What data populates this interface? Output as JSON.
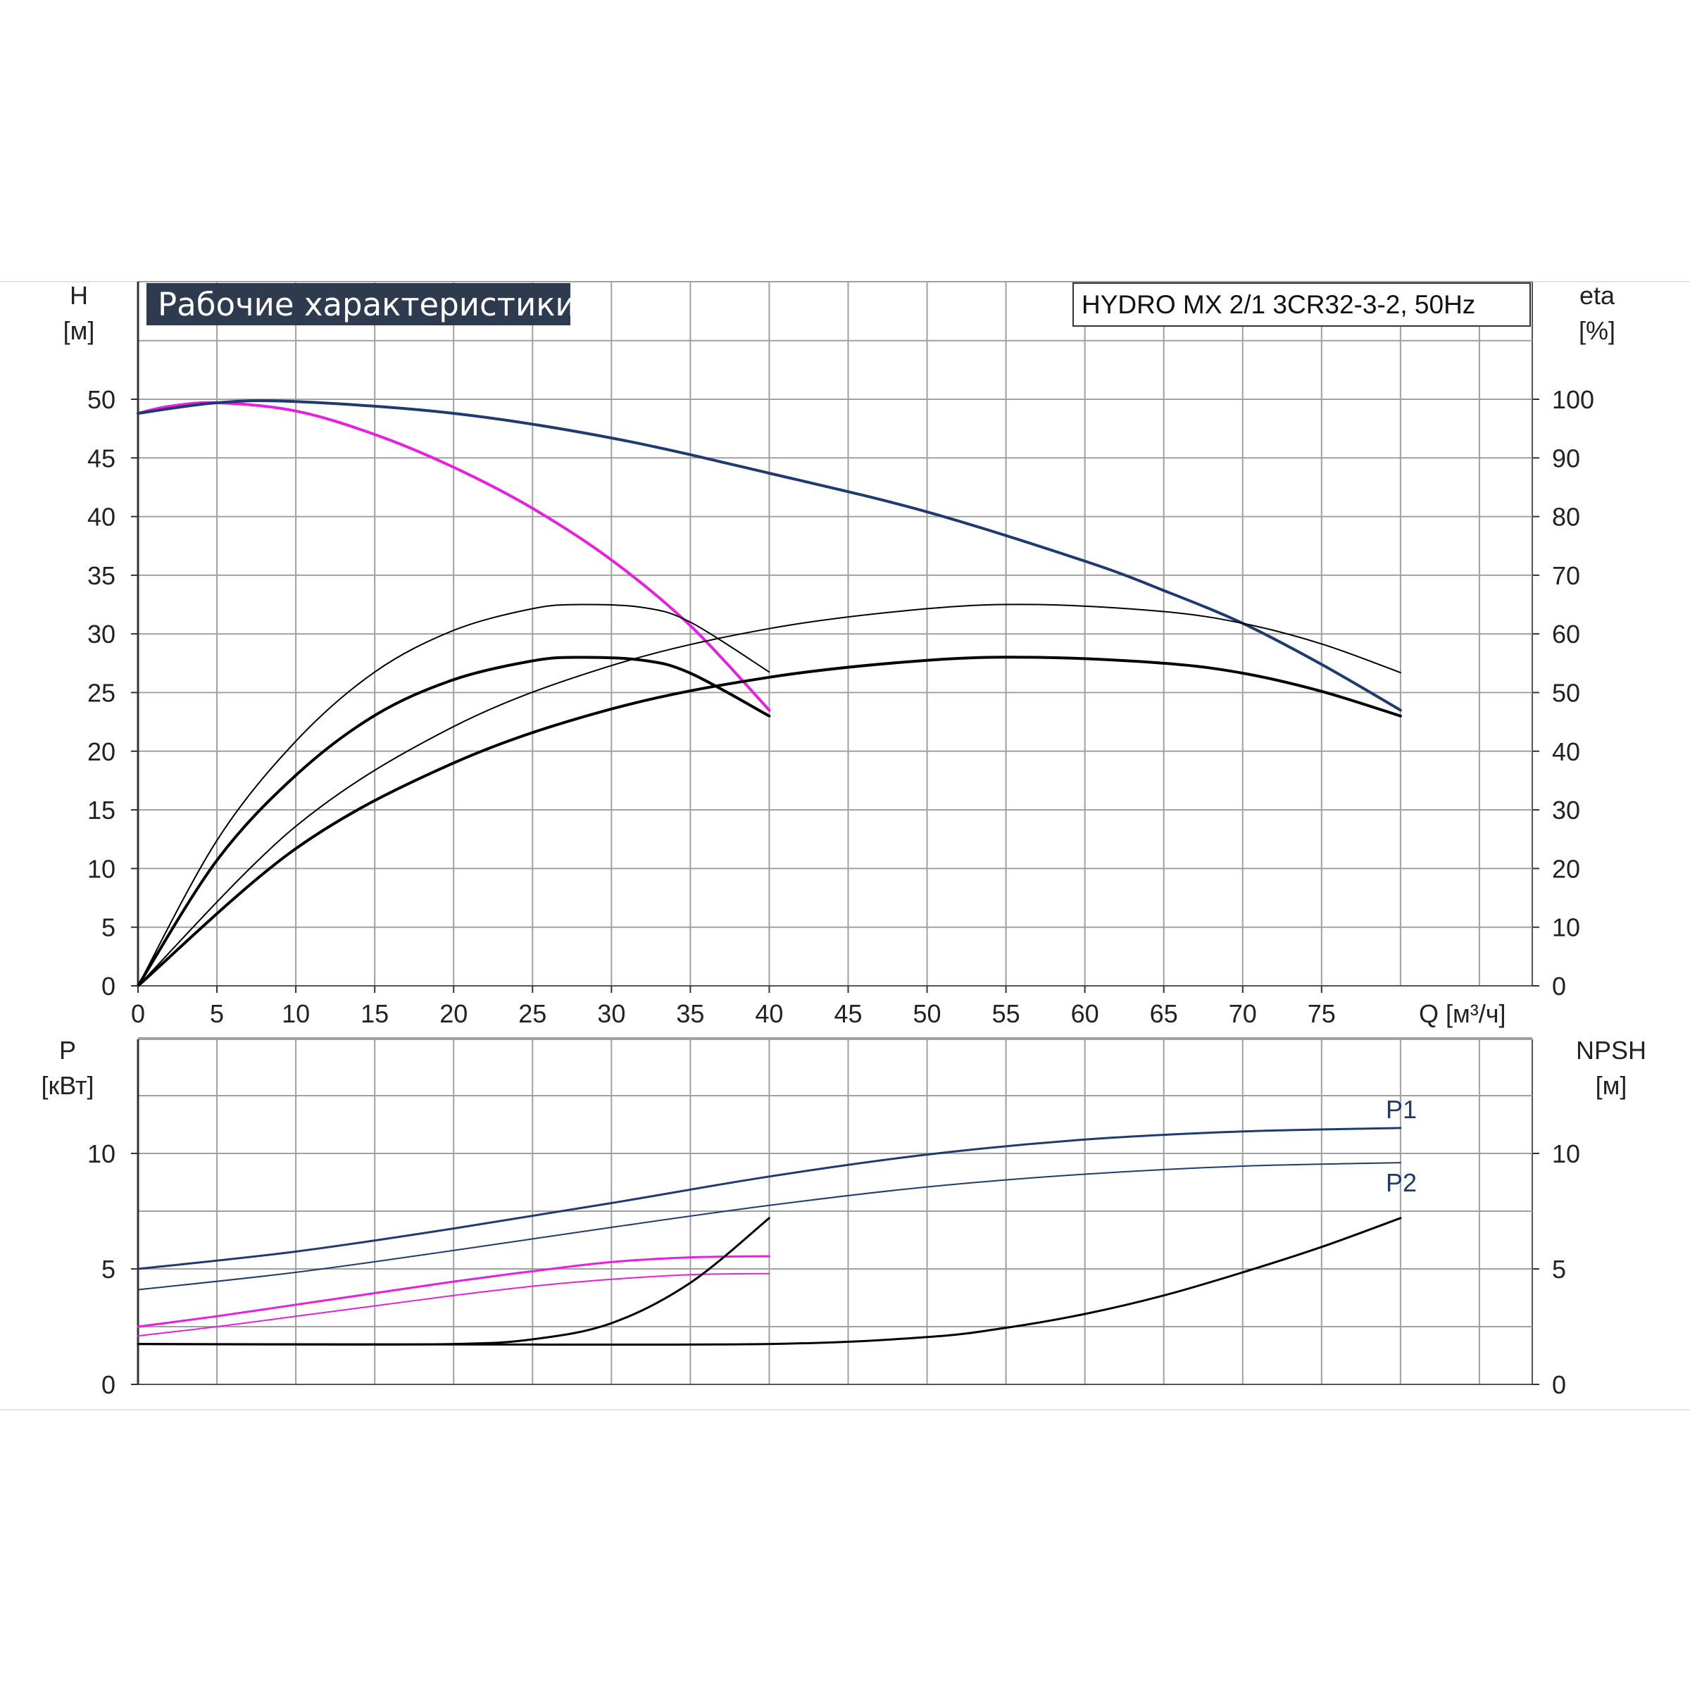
{
  "title": "Рабочие характеристики",
  "model": "HYDRO MX 2/1 3CR32-3-2, 50Hz",
  "colors": {
    "navy": "#1f3a6e",
    "magenta": "#e81ee0",
    "black": "#000000",
    "grid": "#a0a0a0",
    "title_bg": "#2e3a4e"
  },
  "chart_data": [
    {
      "type": "line",
      "name": "top",
      "y_label": {
        "name": "H",
        "unit": "[м]"
      },
      "y2_label": {
        "name": "eta",
        "unit": "[%]"
      },
      "x_label": "Q [м³/ч]",
      "xlim": [
        0,
        88
      ],
      "ylim": [
        0,
        50
      ],
      "y2lim": [
        0,
        100
      ],
      "x_ticks": [
        "0",
        "5",
        "10",
        "15",
        "20",
        "25",
        "30",
        "35",
        "40",
        "45",
        "50",
        "55",
        "60",
        "65",
        "70",
        "75"
      ],
      "y_ticks": [
        "0",
        "5",
        "10",
        "15",
        "20",
        "25",
        "30",
        "35",
        "40",
        "45",
        "50"
      ],
      "y2_ticks": [
        "0",
        "10",
        "20",
        "30",
        "40",
        "50",
        "60",
        "70",
        "80",
        "90",
        "100"
      ],
      "grid": true,
      "series": [
        {
          "role": "H_single",
          "color": "magenta",
          "width": 4,
          "x": [
            0,
            2,
            5,
            10,
            15,
            20,
            25,
            30,
            35,
            40
          ],
          "y": [
            48.8,
            49.4,
            49.7,
            49.0,
            47.0,
            44.2,
            40.7,
            36.3,
            30.7,
            23.5
          ]
        },
        {
          "role": "H_dual",
          "color": "navy",
          "width": 4,
          "x": [
            0,
            5,
            10,
            20,
            30,
            40,
            50,
            60,
            65,
            70,
            75,
            80
          ],
          "y": [
            48.8,
            49.7,
            49.8,
            48.8,
            46.7,
            43.7,
            40.4,
            36.2,
            33.7,
            30.9,
            27.4,
            23.5
          ]
        },
        {
          "role": "eta_single_a",
          "color": "black",
          "width": 2,
          "x": [
            0,
            5,
            10,
            15,
            20,
            25,
            28,
            32,
            35,
            40
          ],
          "y": [
            0,
            24.8,
            41.7,
            53.5,
            60.6,
            64.3,
            65.0,
            64.5,
            62.0,
            53.5
          ]
        },
        {
          "role": "eta_single_b",
          "color": "black",
          "width": 4,
          "x": [
            0,
            5,
            10,
            15,
            20,
            25,
            28,
            32,
            35,
            40
          ],
          "y": [
            0,
            21.4,
            35.9,
            46.1,
            52.2,
            55.4,
            56.0,
            55.5,
            53.3,
            46.0
          ]
        },
        {
          "role": "eta_dual_a",
          "color": "black",
          "width": 2,
          "x": [
            0,
            10,
            20,
            30,
            40,
            50,
            57,
            65,
            70,
            75,
            80
          ],
          "y": [
            0,
            27.2,
            44.2,
            54.6,
            60.9,
            64.3,
            65.0,
            63.8,
            61.8,
            58.3,
            53.4
          ]
        },
        {
          "role": "eta_dual_b",
          "color": "black",
          "width": 4,
          "x": [
            0,
            10,
            20,
            30,
            40,
            50,
            57,
            65,
            70,
            75,
            80
          ],
          "y": [
            0,
            23.4,
            38.0,
            47.2,
            52.6,
            55.5,
            56.0,
            55.0,
            53.3,
            50.2,
            46.0
          ]
        }
      ]
    },
    {
      "type": "line",
      "name": "bottom",
      "y_label": {
        "name": "P",
        "unit": "[кВт]"
      },
      "y2_label": {
        "name": "NPSH",
        "unit": "[м]"
      },
      "xlim": [
        0,
        88
      ],
      "ylim": [
        0,
        15
      ],
      "y2lim": [
        0,
        15
      ],
      "y_ticks": [
        "0",
        "5",
        "10"
      ],
      "y2_ticks": [
        "0",
        "5",
        "10"
      ],
      "grid": true,
      "series": [
        {
          "role": "P1_dual",
          "label": "P1",
          "color": "navy",
          "width": 3,
          "x": [
            0,
            10,
            20,
            30,
            40,
            50,
            60,
            70,
            80
          ],
          "y": [
            5.0,
            5.75,
            6.75,
            7.85,
            9.0,
            9.95,
            10.6,
            10.95,
            11.1
          ]
        },
        {
          "role": "P2_dual",
          "label": "P2",
          "color": "navy",
          "width": 2,
          "x": [
            0,
            10,
            20,
            30,
            40,
            50,
            60,
            70,
            80
          ],
          "y": [
            4.1,
            4.85,
            5.8,
            6.8,
            7.75,
            8.55,
            9.1,
            9.45,
            9.6
          ]
        },
        {
          "role": "P1_single",
          "color": "magenta",
          "width": 3,
          "x": [
            0,
            5,
            10,
            15,
            20,
            25,
            30,
            35,
            40
          ],
          "y": [
            2.5,
            2.95,
            3.45,
            3.95,
            4.45,
            4.9,
            5.3,
            5.5,
            5.55
          ]
        },
        {
          "role": "P2_single",
          "color": "magenta",
          "width": 2,
          "x": [
            0,
            5,
            10,
            15,
            20,
            25,
            30,
            35,
            40
          ],
          "y": [
            2.1,
            2.5,
            2.95,
            3.4,
            3.85,
            4.25,
            4.55,
            4.75,
            4.8
          ]
        },
        {
          "role": "NPSH_single",
          "color": "black",
          "width": 3,
          "x": [
            0,
            10,
            20,
            25,
            30,
            35,
            40
          ],
          "y": [
            1.75,
            1.73,
            1.75,
            1.95,
            2.65,
            4.4,
            7.2
          ]
        },
        {
          "role": "NPSH_dual",
          "color": "black",
          "width": 3,
          "x": [
            0,
            20,
            40,
            50,
            55,
            60,
            65,
            70,
            75,
            80
          ],
          "y": [
            1.75,
            1.73,
            1.75,
            2.05,
            2.45,
            3.05,
            3.85,
            4.85,
            5.95,
            7.2
          ]
        }
      ]
    }
  ]
}
